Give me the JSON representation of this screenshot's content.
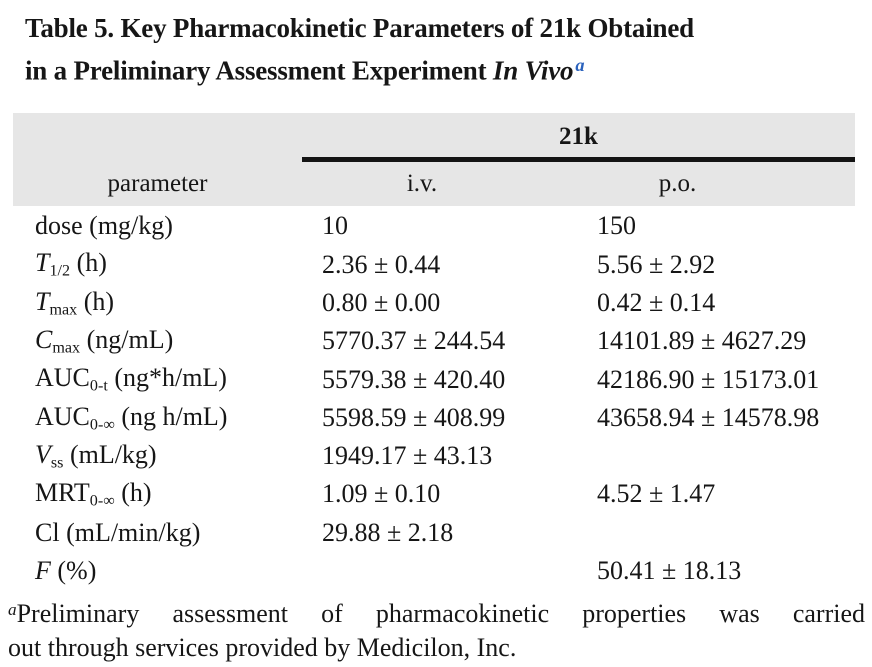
{
  "title": {
    "line1": "Table 5. Key Pharmacokinetic Parameters of 21k Obtained",
    "line2_prefix": "in a Preliminary Assessment Experiment ",
    "line2_italic": "In Vivo",
    "footnote_marker": "a"
  },
  "table": {
    "group_header": "21k",
    "columns": [
      "parameter",
      "i.v.",
      "p.o."
    ],
    "rows": [
      {
        "label_parts": [
          {
            "t": "dose (mg/kg)"
          }
        ],
        "iv": "10",
        "po": "150"
      },
      {
        "label_parts": [
          {
            "t": "T",
            "s": "i"
          },
          {
            "t": "1/2",
            "s": "sub"
          },
          {
            "t": " (h)"
          }
        ],
        "iv": "2.36 ± 0.44",
        "po": "5.56 ± 2.92"
      },
      {
        "label_parts": [
          {
            "t": "T",
            "s": "i"
          },
          {
            "t": "max",
            "s": "sub"
          },
          {
            "t": " (h)"
          }
        ],
        "iv": "0.80 ± 0.00",
        "po": "0.42 ± 0.14"
      },
      {
        "label_parts": [
          {
            "t": "C",
            "s": "i"
          },
          {
            "t": "max",
            "s": "sub"
          },
          {
            "t": " (ng/mL)"
          }
        ],
        "iv": "5770.37 ± 244.54",
        "po": "14101.89 ± 4627.29"
      },
      {
        "label_parts": [
          {
            "t": "AUC"
          },
          {
            "t": "0-t",
            "s": "sub"
          },
          {
            "t": " (ng*h/mL)"
          }
        ],
        "iv": "5579.38 ± 420.40",
        "po": "42186.90 ± 15173.01"
      },
      {
        "label_parts": [
          {
            "t": "AUC"
          },
          {
            "t": "0-∞",
            "s": "sub"
          },
          {
            "t": " (ng h/mL)"
          }
        ],
        "iv": "5598.59 ± 408.99",
        "po": "43658.94 ± 14578.98"
      },
      {
        "label_parts": [
          {
            "t": "V",
            "s": "i"
          },
          {
            "t": "ss",
            "s": "sub"
          },
          {
            "t": " (mL/kg)"
          }
        ],
        "iv": "1949.17 ± 43.13",
        "po": ""
      },
      {
        "label_parts": [
          {
            "t": "MRT"
          },
          {
            "t": "0-∞",
            "s": "sub"
          },
          {
            "t": " (h)"
          }
        ],
        "iv": "1.09 ± 0.10",
        "po": "4.52 ± 1.47"
      },
      {
        "label_parts": [
          {
            "t": "Cl (mL/min/kg)"
          }
        ],
        "iv": "29.88 ± 2.18",
        "po": ""
      },
      {
        "label_parts": [
          {
            "t": "F",
            "s": "i"
          },
          {
            "t": " (%)"
          }
        ],
        "iv": "",
        "po": "50.41 ± 18.13"
      }
    ]
  },
  "footnote": {
    "marker": "a",
    "line1": "Preliminary assessment of pharmacokinetic properties was carried",
    "line2": "out through services provided by Medicilon, Inc."
  },
  "colors": {
    "header_bg": "#e6e6e6",
    "rule": "#141414",
    "marker_blue": "#2b62bd",
    "text": "#161616"
  }
}
